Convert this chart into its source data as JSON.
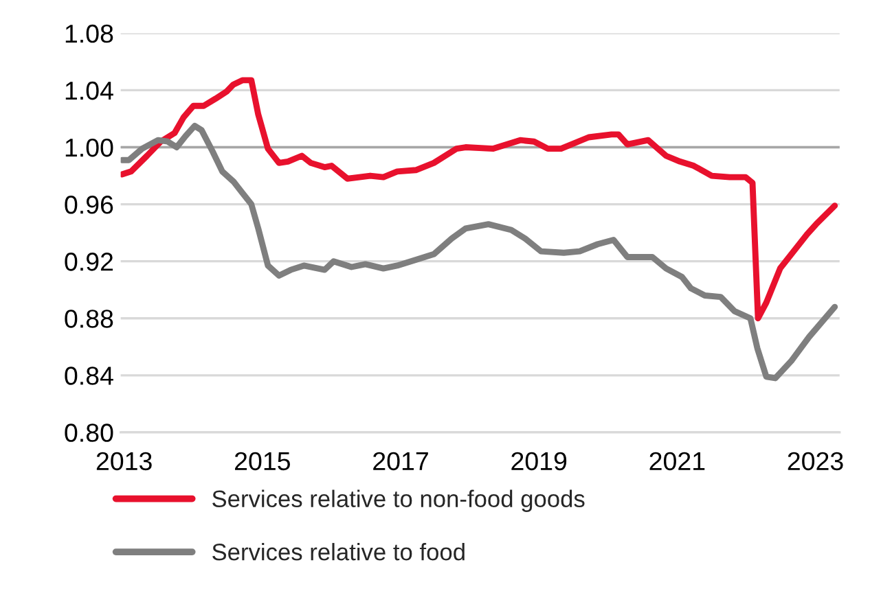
{
  "chart_data": {
    "type": "line",
    "xlim": [
      2012.95,
      2023.35
    ],
    "xticks": [
      2013,
      2015,
      2017,
      2019,
      2021,
      2023
    ],
    "ylim": [
      0.8,
      1.08
    ],
    "yticks": [
      {
        "value": 0.8,
        "label": "0.80"
      },
      {
        "value": 0.84,
        "label": "0.84"
      },
      {
        "value": 0.88,
        "label": "0.88"
      },
      {
        "value": 0.92,
        "label": "0.92"
      },
      {
        "value": 0.96,
        "label": "0.96"
      },
      {
        "value": 1.0,
        "label": "1.00"
      },
      {
        "value": 1.04,
        "label": "1.04"
      },
      {
        "value": 1.08,
        "label": "1.08"
      }
    ],
    "grid": "y",
    "legend": "bottom",
    "ref_lines": [
      {
        "axis": "y",
        "value": 1.0,
        "label": null,
        "color": "#a6a6a6"
      }
    ],
    "series": [
      {
        "name": "Services relative to non-food goods",
        "color": "#e8112d",
        "x": [
          2012.97,
          2013.1,
          2013.33,
          2013.53,
          2013.73,
          2013.86,
          2014.0,
          2014.15,
          2014.32,
          2014.48,
          2014.58,
          2014.71,
          2014.84,
          2014.94,
          2015.08,
          2015.24,
          2015.37,
          2015.57,
          2015.7,
          2015.9,
          2016.0,
          2016.23,
          2016.56,
          2016.75,
          2016.95,
          2017.22,
          2017.48,
          2017.81,
          2017.94,
          2018.34,
          2018.73,
          2018.93,
          2019.13,
          2019.32,
          2019.72,
          2020.05,
          2020.15,
          2020.28,
          2020.58,
          2020.84,
          2021.04,
          2021.24,
          2021.5,
          2021.76,
          2021.99,
          2022.09,
          2022.17,
          2022.29,
          2022.49,
          2022.88,
          2023.01,
          2023.28
        ],
        "values": [
          0.981,
          0.983,
          0.994,
          1.004,
          1.01,
          1.021,
          1.029,
          1.029,
          1.034,
          1.039,
          1.044,
          1.047,
          1.047,
          1.023,
          0.999,
          0.989,
          0.99,
          0.994,
          0.989,
          0.986,
          0.987,
          0.978,
          0.98,
          0.979,
          0.983,
          0.984,
          0.989,
          0.999,
          1.0,
          0.999,
          1.005,
          1.004,
          0.999,
          0.999,
          1.007,
          1.009,
          1.009,
          1.002,
          1.005,
          0.994,
          0.99,
          0.987,
          0.98,
          0.979,
          0.979,
          0.975,
          0.88,
          0.891,
          0.915,
          0.939,
          0.946,
          0.959
        ]
      },
      {
        "name": "Services relative to food",
        "color": "#7f7f7f",
        "x": [
          2012.97,
          2013.07,
          2013.26,
          2013.49,
          2013.63,
          2013.76,
          2013.89,
          2014.02,
          2014.12,
          2014.28,
          2014.42,
          2014.58,
          2014.71,
          2014.84,
          2014.94,
          2015.08,
          2015.24,
          2015.41,
          2015.6,
          2015.9,
          2016.03,
          2016.29,
          2016.49,
          2016.75,
          2016.95,
          2017.22,
          2017.48,
          2017.74,
          2017.94,
          2018.27,
          2018.6,
          2018.8,
          2019.03,
          2019.36,
          2019.59,
          2019.85,
          2020.08,
          2020.28,
          2020.64,
          2020.84,
          2021.07,
          2021.2,
          2021.4,
          2021.63,
          2021.83,
          2022.06,
          2022.16,
          2022.29,
          2022.42,
          2022.65,
          2022.91,
          2023.28
        ],
        "values": [
          0.991,
          0.991,
          0.999,
          1.005,
          1.004,
          1.0,
          1.008,
          1.015,
          1.012,
          0.997,
          0.983,
          0.976,
          0.968,
          0.96,
          0.943,
          0.917,
          0.91,
          0.914,
          0.917,
          0.914,
          0.92,
          0.916,
          0.918,
          0.915,
          0.917,
          0.921,
          0.925,
          0.936,
          0.943,
          0.946,
          0.942,
          0.936,
          0.927,
          0.926,
          0.927,
          0.932,
          0.935,
          0.923,
          0.923,
          0.915,
          0.909,
          0.901,
          0.896,
          0.895,
          0.885,
          0.88,
          0.859,
          0.839,
          0.838,
          0.85,
          0.867,
          0.888
        ]
      }
    ]
  }
}
